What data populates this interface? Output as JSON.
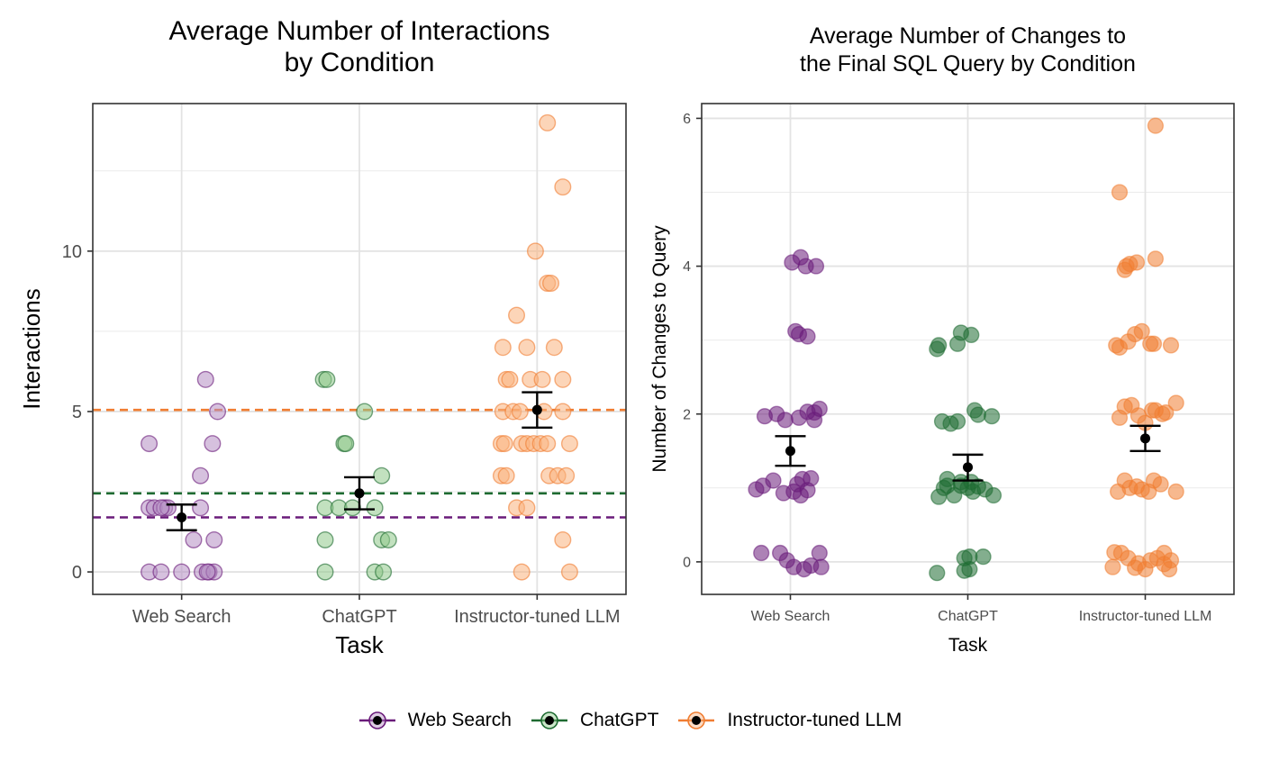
{
  "colors": {
    "web_search": "#6a1b7a",
    "chatgpt": "#1e6b31",
    "instructor": "#f07d32",
    "web_search_fill": "#b58ec3",
    "chatgpt_fill": "#8fc98a",
    "instructor_fill": "#f9b27e",
    "instructor_fill_dark": "#f59a5a"
  },
  "legend": {
    "items": [
      {
        "label": "Web Search",
        "key": "web_search"
      },
      {
        "label": "ChatGPT",
        "key": "chatgpt"
      },
      {
        "label": "Instructor-tuned LLM",
        "key": "instructor"
      }
    ]
  },
  "chart_data": [
    {
      "type": "scatter",
      "title": "Average Number of Interactions\nby Condition",
      "xlabel": "Task",
      "ylabel": "Interactions",
      "categories": [
        "Web Search",
        "ChatGPT",
        "Instructor-tuned LLM"
      ],
      "ylim": [
        -0.7,
        14.6
      ],
      "yticks": [
        0,
        5,
        10
      ],
      "yminor": [
        2.5,
        7.5,
        12.5
      ],
      "grid": true,
      "hlines": [
        {
          "series": "web_search",
          "value": 1.7
        },
        {
          "series": "chatgpt",
          "value": 2.45
        },
        {
          "series": "instructor",
          "value": 5.05
        }
      ],
      "means": [
        {
          "category": "Web Search",
          "mean": 1.7,
          "lower": 1.3,
          "upper": 2.1
        },
        {
          "category": "ChatGPT",
          "mean": 2.45,
          "lower": 1.95,
          "upper": 2.95
        },
        {
          "category": "Instructor-tuned LLM",
          "mean": 5.05,
          "lower": 4.5,
          "upper": 5.6
        }
      ],
      "points": [
        {
          "series": "web_search",
          "points": [
            [
              -0.95,
              4
            ],
            [
              -0.95,
              2
            ],
            [
              -0.8,
              2
            ],
            [
              -0.5,
              2
            ],
            [
              -0.4,
              2
            ],
            [
              -0.6,
              2
            ],
            [
              0.7,
              6
            ],
            [
              1.05,
              5
            ],
            [
              0.9,
              4
            ],
            [
              0.55,
              3
            ],
            [
              0.55,
              2
            ],
            [
              0.35,
              1
            ],
            [
              0.95,
              1
            ],
            [
              -0.95,
              0
            ],
            [
              -0.6,
              0
            ],
            [
              0,
              0
            ],
            [
              0.6,
              0
            ],
            [
              0.8,
              0
            ],
            [
              0.95,
              0
            ],
            [
              0.75,
              0
            ]
          ]
        },
        {
          "series": "chatgpt",
          "points": [
            [
              -1.05,
              6
            ],
            [
              -0.95,
              6
            ],
            [
              -0.45,
              4
            ],
            [
              -0.4,
              4
            ],
            [
              0.15,
              5
            ],
            [
              -1,
              2
            ],
            [
              -0.6,
              2
            ],
            [
              -0.2,
              2
            ],
            [
              0.45,
              2
            ],
            [
              0.65,
              3
            ],
            [
              -1,
              1
            ],
            [
              0.65,
              1
            ],
            [
              0.85,
              1
            ],
            [
              -1,
              0
            ],
            [
              0.45,
              0
            ],
            [
              0.7,
              0
            ]
          ]
        },
        {
          "series": "instructor",
          "points": [
            [
              0.3,
              14
            ],
            [
              0.75,
              12
            ],
            [
              -0.05,
              10
            ],
            [
              0.3,
              9
            ],
            [
              0.4,
              9
            ],
            [
              -0.6,
              8
            ],
            [
              -1,
              7
            ],
            [
              -0.3,
              7
            ],
            [
              0.5,
              7
            ],
            [
              -0.9,
              6
            ],
            [
              -0.8,
              6
            ],
            [
              -0.2,
              6
            ],
            [
              0.15,
              6
            ],
            [
              0.75,
              6
            ],
            [
              -1,
              5
            ],
            [
              -0.7,
              5
            ],
            [
              -0.5,
              5
            ],
            [
              0.2,
              5
            ],
            [
              0.75,
              5
            ],
            [
              -1.05,
              4
            ],
            [
              -0.95,
              4
            ],
            [
              -0.45,
              4
            ],
            [
              -0.3,
              4
            ],
            [
              -0.1,
              4
            ],
            [
              0.1,
              4
            ],
            [
              0.3,
              4
            ],
            [
              0.95,
              4
            ],
            [
              -1.05,
              3
            ],
            [
              -0.9,
              3
            ],
            [
              0.35,
              3
            ],
            [
              0.6,
              3
            ],
            [
              0.85,
              3
            ],
            [
              -0.6,
              2
            ],
            [
              -0.3,
              2
            ],
            [
              0.75,
              1
            ],
            [
              -0.45,
              0
            ],
            [
              0.95,
              0
            ]
          ]
        }
      ]
    },
    {
      "type": "scatter",
      "title": "Average Number of Changes to\nthe Final SQL Query by Condition",
      "xlabel": "Task",
      "ylabel": "Number of Changes to Query",
      "categories": [
        "Web Search",
        "ChatGPT",
        "Instructor-tuned LLM"
      ],
      "ylim": [
        -0.44,
        6.2
      ],
      "yticks": [
        0,
        2,
        4,
        6
      ],
      "yminor": [
        1,
        3,
        5
      ],
      "grid": true,
      "hlines": [],
      "means": [
        {
          "category": "Web Search",
          "mean": 1.5,
          "lower": 1.3,
          "upper": 1.7
        },
        {
          "category": "ChatGPT",
          "mean": 1.28,
          "lower": 1.1,
          "upper": 1.45
        },
        {
          "category": "Instructor-tuned LLM",
          "mean": 1.67,
          "lower": 1.5,
          "upper": 1.84
        }
      ],
      "points": [
        {
          "series": "web_search",
          "points": [
            [
              0.05,
              4.05
            ],
            [
              0.3,
              4.12
            ],
            [
              0.45,
              4.0
            ],
            [
              0.75,
              4.0
            ],
            [
              0.15,
              3.12
            ],
            [
              0.25,
              3.08
            ],
            [
              0.5,
              3.05
            ],
            [
              -0.75,
              1.97
            ],
            [
              -0.4,
              2.0
            ],
            [
              -0.15,
              1.92
            ],
            [
              0.25,
              1.95
            ],
            [
              0.5,
              2.03
            ],
            [
              0.7,
              2.02
            ],
            [
              0.7,
              1.92
            ],
            [
              0.85,
              2.07
            ],
            [
              -1,
              0.98
            ],
            [
              -0.8,
              1.03
            ],
            [
              -0.5,
              1.1
            ],
            [
              -0.2,
              0.93
            ],
            [
              0.1,
              0.95
            ],
            [
              0.2,
              1.05
            ],
            [
              0.35,
              1.12
            ],
            [
              0.5,
              0.97
            ],
            [
              0.6,
              1.13
            ],
            [
              0.3,
              0.9
            ],
            [
              -0.85,
              0.12
            ],
            [
              -0.3,
              0.12
            ],
            [
              -0.1,
              0.02
            ],
            [
              0.4,
              -0.1
            ],
            [
              0.1,
              -0.07
            ],
            [
              0.6,
              -0.05
            ],
            [
              0.85,
              0.12
            ],
            [
              0.9,
              -0.07
            ]
          ]
        },
        {
          "series": "chatgpt",
          "points": [
            [
              -0.9,
              2.88
            ],
            [
              -0.85,
              2.93
            ],
            [
              -0.3,
              2.95
            ],
            [
              -0.2,
              3.1
            ],
            [
              0.1,
              3.07
            ],
            [
              -0.75,
              1.9
            ],
            [
              -0.5,
              1.87
            ],
            [
              -0.3,
              1.9
            ],
            [
              0.2,
              2.05
            ],
            [
              0.3,
              1.99
            ],
            [
              0.7,
              1.97
            ],
            [
              -0.85,
              0.88
            ],
            [
              -0.7,
              1.0
            ],
            [
              -0.6,
              1.03
            ],
            [
              -0.4,
              0.9
            ],
            [
              -0.2,
              1.03
            ],
            [
              0,
              1.0
            ],
            [
              0.15,
              0.95
            ],
            [
              0.3,
              1.02
            ],
            [
              0.5,
              0.98
            ],
            [
              0.75,
              0.9
            ],
            [
              -0.6,
              1.12
            ],
            [
              -0.2,
              1.08
            ],
            [
              0.1,
              1.08
            ],
            [
              -0.9,
              -0.15
            ],
            [
              -0.1,
              0.05
            ],
            [
              0.05,
              0.07
            ],
            [
              0.05,
              -0.1
            ],
            [
              0.45,
              0.07
            ],
            [
              -0.1,
              -0.12
            ]
          ]
        },
        {
          "series": "instructor",
          "points": [
            [
              0.3,
              5.9
            ],
            [
              -0.75,
              5.0
            ],
            [
              -0.55,
              4.0
            ],
            [
              -0.45,
              4.03
            ],
            [
              -0.25,
              4.05
            ],
            [
              0.3,
              4.1
            ],
            [
              -0.6,
              3.95
            ],
            [
              -0.85,
              2.93
            ],
            [
              -0.75,
              2.9
            ],
            [
              -0.5,
              2.98
            ],
            [
              -0.3,
              3.08
            ],
            [
              -0.1,
              3.12
            ],
            [
              0.15,
              2.95
            ],
            [
              0.25,
              2.95
            ],
            [
              0.75,
              2.93
            ],
            [
              -0.75,
              1.95
            ],
            [
              -0.6,
              2.1
            ],
            [
              -0.4,
              2.12
            ],
            [
              -0.2,
              1.98
            ],
            [
              0,
              1.88
            ],
            [
              0.2,
              2.05
            ],
            [
              0.3,
              2.05
            ],
            [
              0.5,
              2.0
            ],
            [
              0.6,
              2.02
            ],
            [
              0.9,
              2.15
            ],
            [
              -0.8,
              0.95
            ],
            [
              -0.6,
              1.1
            ],
            [
              -0.45,
              1.0
            ],
            [
              -0.25,
              1.02
            ],
            [
              -0.1,
              0.98
            ],
            [
              0.1,
              0.95
            ],
            [
              0.25,
              1.1
            ],
            [
              0.45,
              1.05
            ],
            [
              0.9,
              0.95
            ],
            [
              -0.9,
              0.13
            ],
            [
              -0.7,
              0.12
            ],
            [
              -0.5,
              0.05
            ],
            [
              -0.3,
              -0.08
            ],
            [
              -0.2,
              -0.02
            ],
            [
              0.0,
              -0.1
            ],
            [
              0.15,
              0.02
            ],
            [
              0.35,
              0.05
            ],
            [
              0.55,
              0.12
            ],
            [
              0.7,
              -0.1
            ],
            [
              0.75,
              0.02
            ],
            [
              0.55,
              -0.03
            ],
            [
              -0.95,
              -0.07
            ]
          ]
        }
      ]
    }
  ]
}
